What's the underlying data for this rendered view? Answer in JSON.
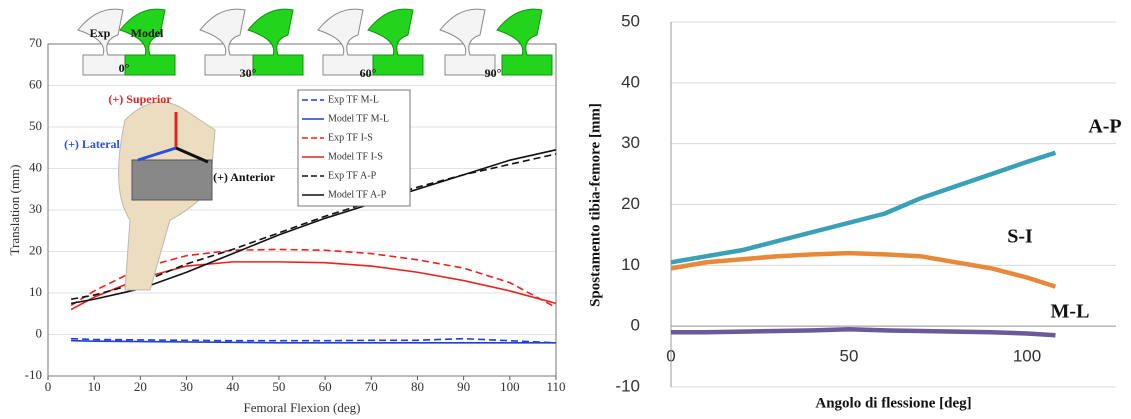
{
  "chart_data": [
    {
      "type": "line",
      "x_label": "Femoral Flexion (deg)",
      "y_label": "Translation (mm)",
      "xlim": [
        0,
        110
      ],
      "xticks": [
        0,
        10,
        20,
        30,
        40,
        50,
        60,
        70,
        80,
        90,
        100,
        110
      ],
      "ylim": [
        -10,
        70
      ],
      "yticks": [
        -10,
        0,
        10,
        20,
        30,
        40,
        50,
        60,
        70
      ],
      "grid": true,
      "legend": "upper right",
      "x": [
        5,
        10,
        20,
        30,
        40,
        50,
        60,
        70,
        80,
        90,
        100,
        110
      ],
      "series": [
        {
          "name": "Exp TF M-L",
          "color": "#1f3fd6",
          "dash": true,
          "values": [
            -1,
            -1.2,
            -1.3,
            -1.4,
            -1.5,
            -1.5,
            -1.5,
            -1.4,
            -1.4,
            -1,
            -1.5,
            -2
          ]
        },
        {
          "name": "Model TF M-L",
          "color": "#1f3fd6",
          "dash": false,
          "values": [
            -1.5,
            -1.6,
            -1.7,
            -1.8,
            -1.9,
            -2,
            -2,
            -2,
            -2,
            -2,
            -2,
            -2
          ]
        },
        {
          "name": "Exp TF I-S",
          "color": "#e8231e",
          "dash": true,
          "values": [
            7,
            10.5,
            16,
            19,
            20.3,
            20.5,
            20.3,
            19.5,
            18,
            16,
            12.5,
            6.5
          ]
        },
        {
          "name": "Model TF I-S",
          "color": "#e8231e",
          "dash": false,
          "values": [
            6,
            9,
            13.5,
            16.5,
            17.5,
            17.5,
            17.3,
            16.5,
            15,
            13,
            10.5,
            7.5
          ]
        },
        {
          "name": "Exp TF A-P",
          "color": "#111111",
          "dash": true,
          "values": [
            8.5,
            9.5,
            12.5,
            17,
            20.5,
            24.5,
            28.5,
            32,
            35.5,
            38.5,
            41,
            43.5
          ]
        },
        {
          "name": "Model TF A-P",
          "color": "#111111",
          "dash": false,
          "values": [
            7.5,
            8.5,
            11,
            15,
            19.5,
            24,
            28,
            31.5,
            35,
            38.5,
            42,
            44.5
          ]
        }
      ],
      "annotations": [
        "Exp",
        "Model",
        "0°",
        "30°",
        "60°",
        "90°",
        "(+) Superior",
        "(+) Lateral",
        "(+) Anterior"
      ]
    },
    {
      "type": "line",
      "x_label": "Angolo di flessione [deg]",
      "y_label": "Spostamento tibia-femore [mm]",
      "xlim": [
        0,
        125
      ],
      "xticks": [
        0,
        50,
        100
      ],
      "ylim": [
        -10,
        50
      ],
      "yticks": [
        -10,
        0,
        10,
        20,
        30,
        40,
        50
      ],
      "grid": true,
      "x": [
        0,
        10,
        20,
        30,
        40,
        50,
        60,
        70,
        80,
        90,
        100,
        108
      ],
      "series": [
        {
          "name": "A-P",
          "color": "#3aa0b8",
          "values": [
            10.5,
            11.5,
            12.5,
            14,
            15.5,
            17,
            18.5,
            21,
            23,
            25,
            27,
            28.5
          ]
        },
        {
          "name": "S-I",
          "color": "#e8893a",
          "values": [
            9.5,
            10.5,
            11,
            11.5,
            11.8,
            12,
            11.8,
            11.5,
            10.5,
            9.5,
            8,
            6.5
          ]
        },
        {
          "name": "M-L",
          "color": "#6a5a9a",
          "values": [
            -1,
            -1,
            -0.9,
            -0.8,
            -0.7,
            -0.5,
            -0.7,
            -0.8,
            -0.9,
            -1,
            -1.2,
            -1.5
          ]
        }
      ]
    }
  ]
}
